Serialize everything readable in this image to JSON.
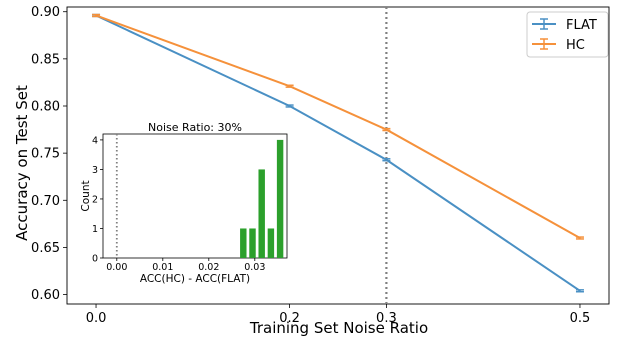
{
  "chart_data": [
    {
      "type": "line",
      "xlabel": "Training Set Noise Ratio",
      "ylabel": "Accuracy on Test Set",
      "xlim": [
        -0.03,
        0.53
      ],
      "ylim": [
        0.59,
        0.905
      ],
      "xticks": [
        0.0,
        0.2,
        0.3,
        0.5
      ],
      "xtick_labels": [
        "0.0",
        "0.2",
        "0.3",
        "0.5"
      ],
      "yticks": [
        0.6,
        0.65,
        0.7,
        0.75,
        0.8,
        0.85,
        0.9
      ],
      "ytick_labels": [
        "0.60",
        "0.65",
        "0.70",
        "0.75",
        "0.80",
        "0.85",
        "0.90"
      ],
      "vline": {
        "x": 0.3,
        "style": "dotted",
        "color": "#808080"
      },
      "legend": {
        "placement": "top-right",
        "entries": [
          "FLAT",
          "HC"
        ]
      },
      "series": [
        {
          "name": "FLAT",
          "color": "#4a90c4",
          "x": [
            0.0,
            0.2,
            0.3,
            0.5
          ],
          "y": [
            0.896,
            0.8,
            0.743,
            0.604
          ],
          "err": [
            0.001,
            0.001,
            0.001,
            0.001
          ]
        },
        {
          "name": "HC",
          "color": "#f5913b",
          "x": [
            0.0,
            0.2,
            0.3,
            0.5
          ],
          "y": [
            0.896,
            0.821,
            0.775,
            0.66
          ],
          "err": [
            0.001,
            0.001,
            0.001,
            0.001
          ]
        }
      ]
    },
    {
      "type": "bar",
      "title": "Noise Ratio: 30%",
      "xlabel": "ACC(HC) - ACC(FLAT)",
      "ylabel": "Count",
      "xlim": [
        -0.003,
        0.037
      ],
      "ylim": [
        0,
        4.2
      ],
      "xticks": [
        0.0,
        0.01,
        0.02,
        0.03
      ],
      "xtick_labels": [
        "0.00",
        "0.01",
        "0.02",
        "0.03"
      ],
      "yticks": [
        0,
        1,
        2,
        3,
        4
      ],
      "ytick_labels": [
        "0",
        "1",
        "2",
        "3",
        "4"
      ],
      "bar_color": "#2ca02c",
      "bar_width": 0.0014,
      "vline": {
        "x": 0.0,
        "style": "dotted",
        "color": "#808080"
      },
      "bins": [
        0.0275,
        0.0295,
        0.0315,
        0.0335,
        0.0355
      ],
      "values": [
        1,
        1,
        3,
        1,
        4
      ]
    }
  ]
}
